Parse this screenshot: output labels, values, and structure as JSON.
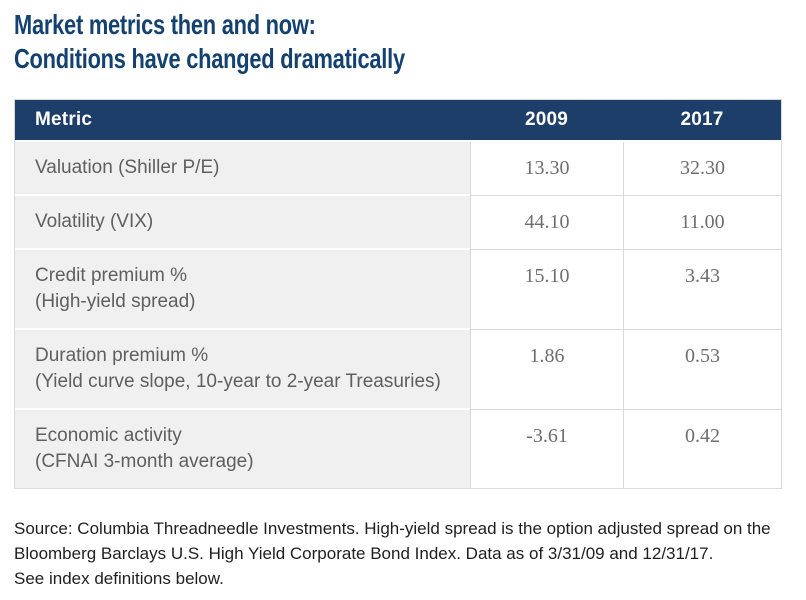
{
  "title": {
    "line1": "Market metrics then and now:",
    "line2": "Conditions have changed dramatically"
  },
  "table": {
    "columns": [
      "Metric",
      "2009",
      "2017"
    ],
    "rows": [
      {
        "metric": "Valuation (Shiller P/E)",
        "sub": "",
        "v2009": "13.30",
        "v2017": "32.30"
      },
      {
        "metric": "Volatility (VIX)",
        "sub": "",
        "v2009": "44.10",
        "v2017": "11.00"
      },
      {
        "metric": "Credit premium %",
        "sub": "(High-yield spread)",
        "v2009": "15.10",
        "v2017": "3.43"
      },
      {
        "metric": "Duration premium %",
        "sub": "(Yield curve slope, 10-year to 2-year Treasuries)",
        "v2009": "1.86",
        "v2017": "0.53"
      },
      {
        "metric": "Economic activity",
        "sub": "(CFNAI 3-month average)",
        "v2009": "-3.61",
        "v2017": "0.42"
      }
    ]
  },
  "footnote": {
    "lines": [
      "Source: Columbia Threadneedle Investments. High-yield spread is the option adjusted spread on the",
      "Bloomberg Barclays U.S. High Yield Corporate Bond Index. Data as of 3/31/09 and 12/31/17.",
      "See index definitions below."
    ]
  },
  "colors": {
    "title_navy": "#134170",
    "header_navy": "#1d3e68",
    "metric_cell_bg": "#f0f0f0",
    "border_gray": "#d9d9d9",
    "metric_text": "#5f5f5f",
    "value_text": "#6e6e6e",
    "footnote_text": "#1f1f1f"
  },
  "chart_data": {
    "type": "table",
    "title": "Market metrics then and now: Conditions have changed dramatically",
    "columns": [
      "Metric",
      "2009",
      "2017"
    ],
    "rows": [
      [
        "Valuation (Shiller P/E)",
        13.3,
        32.3
      ],
      [
        "Volatility (VIX)",
        44.1,
        11.0
      ],
      [
        "Credit premium % (High-yield spread)",
        15.1,
        3.43
      ],
      [
        "Duration premium % (Yield curve slope, 10-year to 2-year Treasuries)",
        1.86,
        0.53
      ],
      [
        "Economic activity (CFNAI 3-month average)",
        -3.61,
        0.42
      ]
    ],
    "source": "Source: Columbia Threadneedle Investments. High-yield spread is the option adjusted spread on the Bloomberg Barclays U.S. High Yield Corporate Bond Index. Data as of 3/31/09 and 12/31/17. See index definitions below."
  }
}
